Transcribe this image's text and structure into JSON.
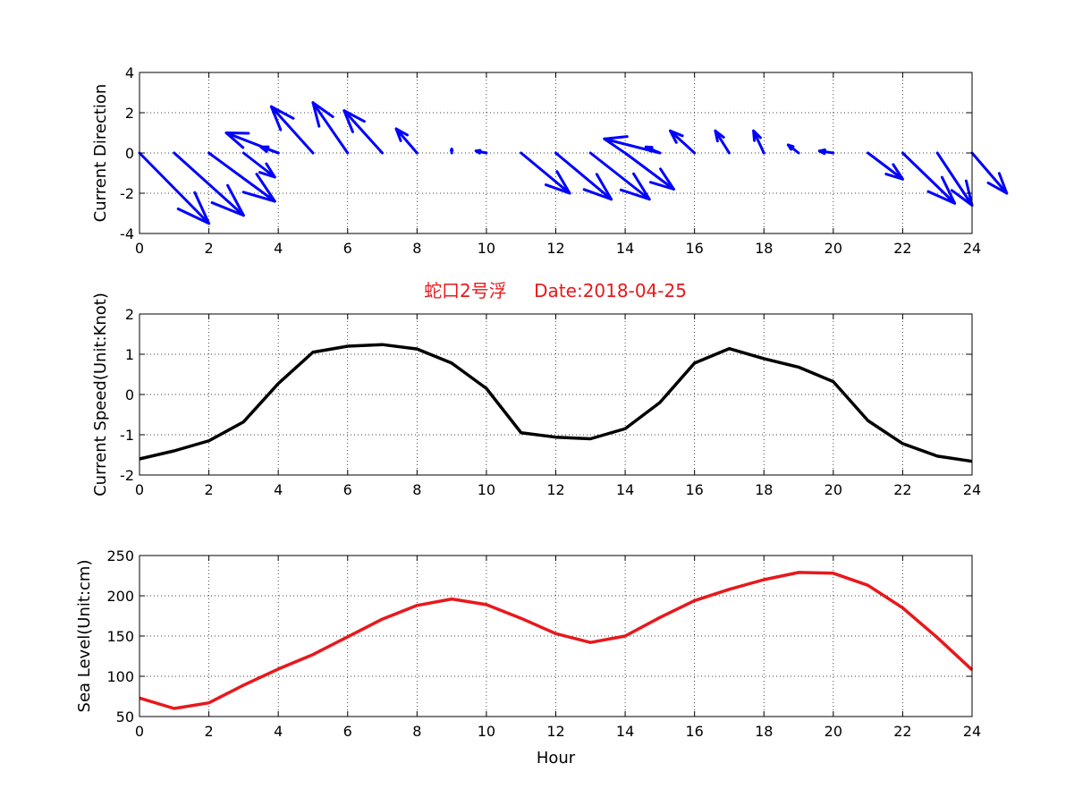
{
  "chart_data": [
    {
      "type": "quiver",
      "ylabel": "Current Direction",
      "xlim": [
        0,
        24
      ],
      "ylim": [
        -4,
        4
      ],
      "xticks": [
        0,
        2,
        4,
        6,
        8,
        10,
        12,
        14,
        16,
        18,
        20,
        22,
        24
      ],
      "yticks": [
        -4,
        -2,
        0,
        2,
        4
      ],
      "grid": true,
      "color": "#0000ff",
      "arrows": [
        {
          "x": 0,
          "u": 2.0,
          "v": -3.5
        },
        {
          "x": 1,
          "u": 2.0,
          "v": -3.1
        },
        {
          "x": 2,
          "u": 1.9,
          "v": -2.4
        },
        {
          "x": 3,
          "u": 0.9,
          "v": -1.2
        },
        {
          "x": 4,
          "u": -0.5,
          "v": 0.3
        },
        {
          "x": 4,
          "u": -1.5,
          "v": 1.0
        },
        {
          "x": 5,
          "u": -1.2,
          "v": 2.3
        },
        {
          "x": 6,
          "u": -1.0,
          "v": 2.5
        },
        {
          "x": 7,
          "u": -1.1,
          "v": 2.1
        },
        {
          "x": 8,
          "u": -0.6,
          "v": 1.2
        },
        {
          "x": 9,
          "u": -0.0,
          "v": 0.2
        },
        {
          "x": 10,
          "u": -0.3,
          "v": 0.1
        },
        {
          "x": 11,
          "u": 1.4,
          "v": -2.0
        },
        {
          "x": 12,
          "u": 1.6,
          "v": -2.3
        },
        {
          "x": 13,
          "u": 1.7,
          "v": -2.3
        },
        {
          "x": 14,
          "u": 1.4,
          "v": -1.8
        },
        {
          "x": 15,
          "u": -0.4,
          "v": 0.3
        },
        {
          "x": 15,
          "u": -1.6,
          "v": 0.7
        },
        {
          "x": 16,
          "u": -0.7,
          "v": 1.1
        },
        {
          "x": 17,
          "u": -0.4,
          "v": 1.1
        },
        {
          "x": 18,
          "u": -0.3,
          "v": 1.1
        },
        {
          "x": 19,
          "u": -0.3,
          "v": 0.4
        },
        {
          "x": 20,
          "u": -0.4,
          "v": 0.1
        },
        {
          "x": 21,
          "u": 1.0,
          "v": -1.3
        },
        {
          "x": 22,
          "u": 1.5,
          "v": -2.5
        },
        {
          "x": 23,
          "u": 1.0,
          "v": -2.6
        },
        {
          "x": 24,
          "u": 1.0,
          "v": -2.0
        }
      ]
    },
    {
      "type": "line",
      "title_cn": "蛇口2号浮",
      "title_date": "Date:2018-04-25",
      "title_color": "#e8181c",
      "ylabel": "Current Speed(Unit:Knot)",
      "xlim": [
        0,
        24
      ],
      "ylim": [
        -2,
        2
      ],
      "xticks": [
        0,
        2,
        4,
        6,
        8,
        10,
        12,
        14,
        16,
        18,
        20,
        22,
        24
      ],
      "yticks": [
        -2,
        -1,
        0,
        1,
        2
      ],
      "grid": true,
      "color": "#000000",
      "x": [
        0,
        1,
        2,
        3,
        4,
        5,
        6,
        7,
        8,
        9,
        10,
        11,
        12,
        13,
        14,
        15,
        16,
        17,
        18,
        19,
        20,
        21,
        22,
        23,
        24
      ],
      "y": [
        -1.6,
        -1.4,
        -1.15,
        -0.68,
        0.27,
        1.05,
        1.2,
        1.24,
        1.13,
        0.78,
        0.15,
        -0.95,
        -1.06,
        -1.1,
        -0.85,
        -0.2,
        0.78,
        1.14,
        0.89,
        0.68,
        0.32,
        -0.65,
        -1.22,
        -1.53,
        -1.66
      ]
    },
    {
      "type": "line",
      "ylabel": "Sea Level(Unit:cm)",
      "xlabel": "Hour",
      "xlim": [
        0,
        24
      ],
      "ylim": [
        50,
        250
      ],
      "xticks": [
        0,
        2,
        4,
        6,
        8,
        10,
        12,
        14,
        16,
        18,
        20,
        22,
        24
      ],
      "yticks": [
        50,
        100,
        150,
        200,
        250
      ],
      "grid": true,
      "color": "#e8181c",
      "x": [
        0,
        1,
        2,
        3,
        4,
        5,
        6,
        7,
        8,
        9,
        10,
        11,
        12,
        13,
        14,
        15,
        16,
        17,
        18,
        19,
        20,
        21,
        22,
        23,
        24
      ],
      "y": [
        73,
        60,
        67,
        89,
        109,
        127,
        149,
        171,
        188,
        196,
        189,
        172,
        153,
        142,
        150,
        173,
        194,
        208,
        220,
        229,
        228,
        213,
        185,
        148,
        108
      ]
    }
  ]
}
